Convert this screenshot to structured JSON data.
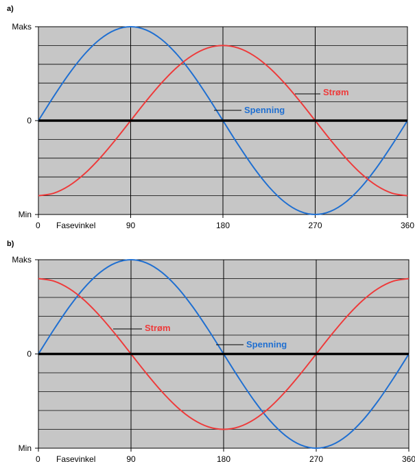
{
  "colors": {
    "voltage": "#1f6fd1",
    "current": "#ee3a3a",
    "plot_bg": "#c6c6c6",
    "zero_line": "#000000",
    "grid": "#000000"
  },
  "chart_data": [
    {
      "panel_label": "a)",
      "type": "line",
      "x": [
        0,
        15,
        30,
        45,
        60,
        75,
        90,
        105,
        120,
        135,
        150,
        165,
        180,
        195,
        210,
        225,
        240,
        255,
        270,
        285,
        300,
        315,
        330,
        345,
        360
      ],
      "xlim": [
        0,
        360
      ],
      "xticks": [
        "0",
        "90",
        "180",
        "270",
        "360"
      ],
      "xlabel": "Fasevinkel",
      "ylim": [
        -1,
        1
      ],
      "yticks": [
        "Min",
        "0",
        "Maks"
      ],
      "grid": true,
      "series": [
        {
          "name": "Spenning",
          "color": "#1f6fd1",
          "values": [
            0,
            0.259,
            0.5,
            0.707,
            0.866,
            0.966,
            1,
            0.966,
            0.866,
            0.707,
            0.5,
            0.259,
            0,
            -0.259,
            -0.5,
            -0.707,
            -0.866,
            -0.966,
            -1,
            -0.966,
            -0.866,
            -0.707,
            -0.5,
            -0.259,
            0
          ]
        },
        {
          "name": "Strøm",
          "color": "#ee3a3a",
          "values": [
            -0.8,
            -0.773,
            -0.693,
            -0.566,
            -0.4,
            -0.207,
            0,
            0.207,
            0.4,
            0.566,
            0.693,
            0.773,
            0.8,
            0.773,
            0.693,
            0.566,
            0.4,
            0.207,
            0,
            -0.207,
            -0.4,
            -0.566,
            -0.693,
            -0.773,
            -0.8
          ]
        }
      ],
      "annotations": [
        "Strøm",
        "Spenning"
      ]
    },
    {
      "panel_label": "b)",
      "type": "line",
      "x": [
        0,
        15,
        30,
        45,
        60,
        75,
        90,
        105,
        120,
        135,
        150,
        165,
        180,
        195,
        210,
        225,
        240,
        255,
        270,
        285,
        300,
        315,
        330,
        345,
        360
      ],
      "xlim": [
        0,
        360
      ],
      "xticks": [
        "0",
        "90",
        "180",
        "270",
        "360"
      ],
      "xlabel": "Fasevinkel",
      "ylim": [
        -1,
        1
      ],
      "yticks": [
        "Min",
        "0",
        "Maks"
      ],
      "grid": true,
      "series": [
        {
          "name": "Spenning",
          "color": "#1f6fd1",
          "values": [
            0,
            0.259,
            0.5,
            0.707,
            0.866,
            0.966,
            1,
            0.966,
            0.866,
            0.707,
            0.5,
            0.259,
            0,
            -0.259,
            -0.5,
            -0.707,
            -0.866,
            -0.966,
            -1,
            -0.966,
            -0.866,
            -0.707,
            -0.5,
            -0.259,
            0
          ]
        },
        {
          "name": "Strøm",
          "color": "#ee3a3a",
          "values": [
            0.8,
            0.773,
            0.693,
            0.566,
            0.4,
            0.207,
            0,
            -0.207,
            -0.4,
            -0.566,
            -0.693,
            -0.773,
            -0.8,
            -0.773,
            -0.693,
            -0.566,
            -0.4,
            -0.207,
            0,
            0.207,
            0.4,
            0.566,
            0.693,
            0.773,
            0.8
          ]
        }
      ],
      "annotations": [
        "Strøm",
        "Spenning"
      ]
    }
  ]
}
